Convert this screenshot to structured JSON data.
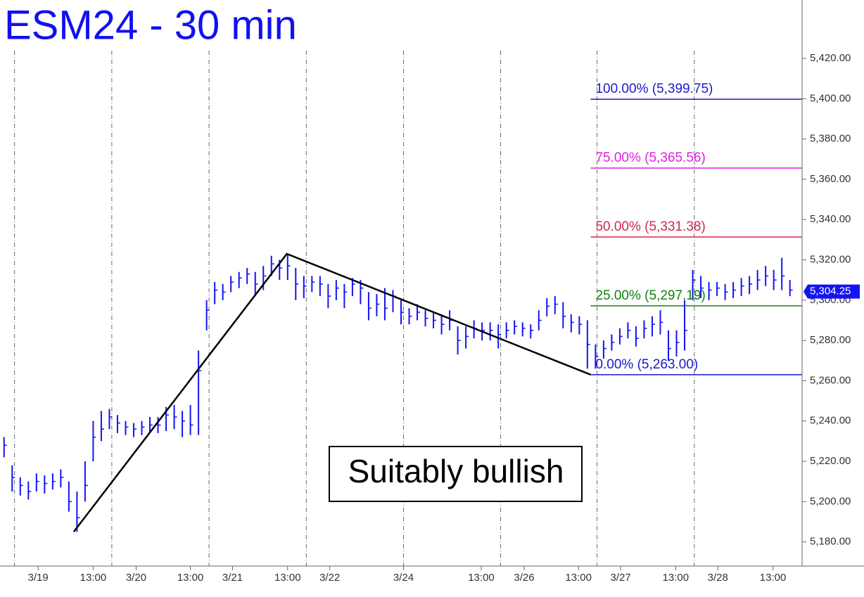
{
  "chart_data": {
    "type": "ohlc",
    "title": "ESM24 - 30 min",
    "color": "#1414f0",
    "xlim": [
      -0.5,
      98.5
    ],
    "ylim": [
      5168,
      5449
    ],
    "yticks": [
      {
        "value": 5180,
        "label": "5,180.00"
      },
      {
        "value": 5200,
        "label": "5,200.00"
      },
      {
        "value": 5220,
        "label": "5,220.00"
      },
      {
        "value": 5240,
        "label": "5,240.00"
      },
      {
        "value": 5260,
        "label": "5,260.00"
      },
      {
        "value": 5280,
        "label": "5,280.00"
      },
      {
        "value": 5300,
        "label": "5,300.00"
      },
      {
        "value": 5320,
        "label": "5,320.00"
      },
      {
        "value": 5340,
        "label": "5,340.00"
      },
      {
        "value": 5360,
        "label": "5,360.00"
      },
      {
        "value": 5380,
        "label": "5,380.00"
      },
      {
        "value": 5400,
        "label": "5,400.00"
      },
      {
        "value": 5420,
        "label": "5,420.00"
      }
    ],
    "xticks": [
      {
        "value": 4.2,
        "label": "3/19"
      },
      {
        "value": 11.0,
        "label": "13:00"
      },
      {
        "value": 16.3,
        "label": "3/20"
      },
      {
        "value": 23.0,
        "label": "13:00"
      },
      {
        "value": 28.2,
        "label": "3/21"
      },
      {
        "value": 35.0,
        "label": "13:00"
      },
      {
        "value": 40.2,
        "label": "3/22"
      },
      {
        "value": 49.3,
        "label": "3/24"
      },
      {
        "value": 58.9,
        "label": "13:00"
      },
      {
        "value": 64.2,
        "label": "3/26"
      },
      {
        "value": 70.9,
        "label": "13:00"
      },
      {
        "value": 76.1,
        "label": "3/27"
      },
      {
        "value": 82.9,
        "label": "13:00"
      },
      {
        "value": 88.1,
        "label": "3/28"
      },
      {
        "value": 94.9,
        "label": "13:00"
      }
    ],
    "xgrid": [
      1.3,
      13.3,
      25.3,
      37.3,
      49.3,
      61.3,
      73.2,
      85.2
    ],
    "high": [
      5232,
      5218,
      5212,
      5210,
      5214,
      5213,
      5214,
      5216,
      5210,
      5205,
      5220,
      5240,
      5245,
      5246,
      5243,
      5240,
      5239,
      5240,
      5242,
      5242,
      5247,
      5248,
      5245,
      5248,
      5275,
      5300,
      5309,
      5308,
      5312,
      5314,
      5316,
      5314,
      5317,
      5322,
      5320,
      5323,
      5316,
      5312,
      5312,
      5312,
      5308,
      5310,
      5308,
      5311,
      5310,
      5304,
      5303,
      5306,
      5305,
      5300,
      5296,
      5298,
      5295,
      5294,
      5293,
      5295,
      5287,
      5287,
      5290,
      5289,
      5289,
      5288,
      5289,
      5290,
      5289,
      5288,
      5295,
      5301,
      5302,
      5299,
      5293,
      5292,
      5290,
      5278,
      5280,
      5283,
      5286,
      5289,
      5287,
      5290,
      5292,
      5295,
      5285,
      5285,
      5300,
      5315,
      5312,
      5309,
      5309,
      5308,
      5309,
      5311,
      5312,
      5315,
      5317,
      5315,
      5321,
      5310
    ],
    "low": [
      5222,
      5205,
      5203,
      5201,
      5205,
      5204,
      5206,
      5207,
      5195,
      5185,
      5200,
      5220,
      5230,
      5236,
      5234,
      5233,
      5232,
      5233,
      5234,
      5234,
      5235,
      5236,
      5232,
      5233,
      5233,
      5285,
      5298,
      5300,
      5304,
      5306,
      5308,
      5302,
      5305,
      5312,
      5310,
      5310,
      5300,
      5301,
      5304,
      5302,
      5296,
      5300,
      5296,
      5302,
      5298,
      5290,
      5292,
      5290,
      5294,
      5288,
      5288,
      5290,
      5287,
      5286,
      5283,
      5285,
      5273,
      5276,
      5281,
      5280,
      5280,
      5276,
      5281,
      5283,
      5282,
      5281,
      5285,
      5292,
      5293,
      5286,
      5284,
      5283,
      5266,
      5266,
      5271,
      5275,
      5278,
      5281,
      5277,
      5281,
      5282,
      5283,
      5270,
      5272,
      5275,
      5300,
      5301,
      5300,
      5302,
      5300,
      5301,
      5302,
      5303,
      5305,
      5307,
      5305,
      5305,
      5302
    ],
    "close": [
      5228,
      5212,
      5208,
      5205,
      5210,
      5209,
      5210,
      5212,
      5200,
      5192,
      5208,
      5232,
      5236,
      5242,
      5239,
      5237,
      5236,
      5237,
      5238,
      5238,
      5243,
      5242,
      5240,
      5238,
      5265,
      5295,
      5305,
      5304,
      5309,
      5311,
      5313,
      5308,
      5312,
      5318,
      5316,
      5317,
      5308,
      5307,
      5309,
      5308,
      5302,
      5306,
      5304,
      5308,
      5306,
      5296,
      5298,
      5296,
      5302,
      5294,
      5292,
      5294,
      5291,
      5290,
      5288,
      5290,
      5280,
      5282,
      5286,
      5285,
      5285,
      5283,
      5285,
      5287,
      5286,
      5285,
      5290,
      5297,
      5298,
      5292,
      5289,
      5288,
      5278,
      5272,
      5276,
      5279,
      5282,
      5285,
      5281,
      5286,
      5288,
      5289,
      5276,
      5279,
      5285,
      5310,
      5306,
      5305,
      5306,
      5304,
      5305,
      5307,
      5308,
      5310,
      5312,
      5310,
      5312,
      5305
    ],
    "fib_levels": [
      {
        "label": "100.00% (5,399.75)",
        "value": 5399.75,
        "color": "#1a1ac8"
      },
      {
        "label": "75.00% (5,365.56)",
        "value": 5365.56,
        "color": "#e020e0"
      },
      {
        "label": "50.00% (5,331.38)",
        "value": 5331.38,
        "color": "#d02848"
      },
      {
        "label": "25.00% (5,297.19)",
        "value": 5297.19,
        "color": "#108010"
      },
      {
        "label": "0.00% (5,263.00)",
        "value": 5263.0,
        "color": "#1a1ac8"
      }
    ],
    "fib_start": 72.4,
    "trendline": {
      "x": [
        8.6,
        34.9,
        72.4
      ],
      "y": [
        5185,
        5323,
        5263
      ]
    },
    "last_price": {
      "value": 5304.25,
      "label": "5,304.25"
    },
    "annotation": "Suitably bullish"
  }
}
